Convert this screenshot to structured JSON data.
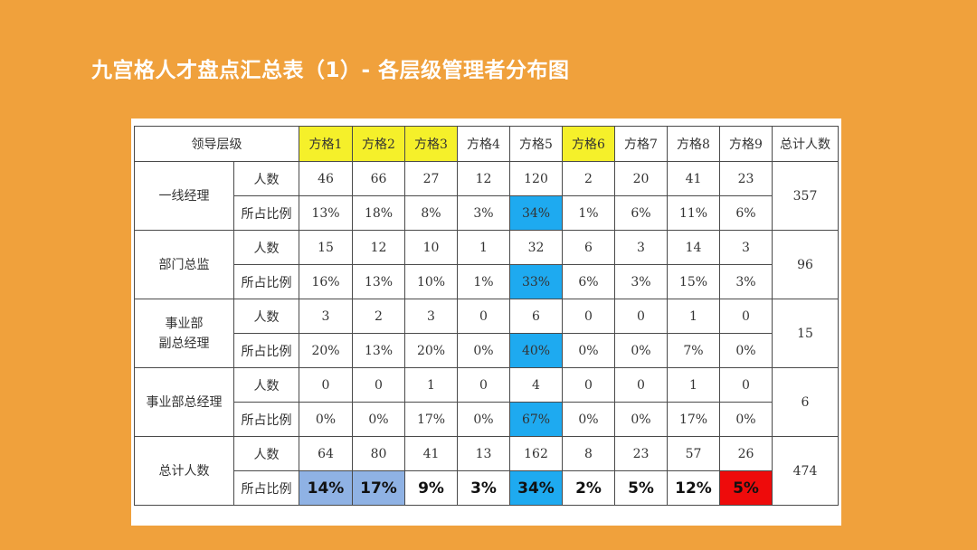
{
  "title": "九宫格人才盘点汇总表（1）- 各层级管理者分布图",
  "header": {
    "level_label": "领导层级",
    "grids": [
      "方格1",
      "方格2",
      "方格3",
      "方格4",
      "方格5",
      "方格6",
      "方格7",
      "方格8",
      "方格9"
    ],
    "total_label": "总计人数",
    "highlighted_grids": [
      "方格1",
      "方格2",
      "方格3",
      "方格6"
    ]
  },
  "groups": [
    {
      "level": [
        "一线经理"
      ],
      "count_label": "人数",
      "ratio_label": "所占比例",
      "counts": [
        "46",
        "66",
        "27",
        "12",
        "120",
        "2",
        "20",
        "41",
        "23"
      ],
      "ratios": [
        "13%",
        "18%",
        "8%",
        "3%",
        "34%",
        "1%",
        "6%",
        "11%",
        "6%"
      ],
      "total": "357"
    },
    {
      "level": [
        "部门总监"
      ],
      "count_label": "人数",
      "ratio_label": "所占比例",
      "counts": [
        "15",
        "12",
        "10",
        "1",
        "32",
        "6",
        "3",
        "14",
        "3"
      ],
      "ratios": [
        "16%",
        "13%",
        "10%",
        "1%",
        "33%",
        "6%",
        "3%",
        "15%",
        "3%"
      ],
      "total": "96"
    },
    {
      "level": [
        "事业部",
        "副总经理"
      ],
      "count_label": "人数",
      "ratio_label": "所占比例",
      "counts": [
        "3",
        "2",
        "3",
        "0",
        "6",
        "0",
        "0",
        "1",
        "0"
      ],
      "ratios": [
        "20%",
        "13%",
        "20%",
        "0%",
        "40%",
        "0%",
        "0%",
        "7%",
        "0%"
      ],
      "total": "15"
    },
    {
      "level": [
        "事业部总经理"
      ],
      "count_label": "人数",
      "ratio_label": "所占比例",
      "counts": [
        "0",
        "0",
        "1",
        "0",
        "4",
        "0",
        "0",
        "1",
        "0"
      ],
      "ratios": [
        "0%",
        "0%",
        "17%",
        "0%",
        "67%",
        "0%",
        "0%",
        "17%",
        "0%"
      ],
      "total": "6"
    },
    {
      "level": [
        "总计人数"
      ],
      "count_label": "人数",
      "ratio_label": "所占比例",
      "counts": [
        "64",
        "80",
        "41",
        "13",
        "162",
        "8",
        "23",
        "57",
        "26"
      ],
      "ratios": [
        "14%",
        "17%",
        "9%",
        "3%",
        "34%",
        "2%",
        "5%",
        "12%",
        "5%"
      ],
      "total": "474"
    }
  ],
  "colors": {
    "background": "#f0a13c",
    "header_yellow": "#f5f02a",
    "grid5_blue": "#1eaaf0",
    "summary_soft_blue": "#8fb2e4",
    "summary_red": "#ee0b0b"
  }
}
